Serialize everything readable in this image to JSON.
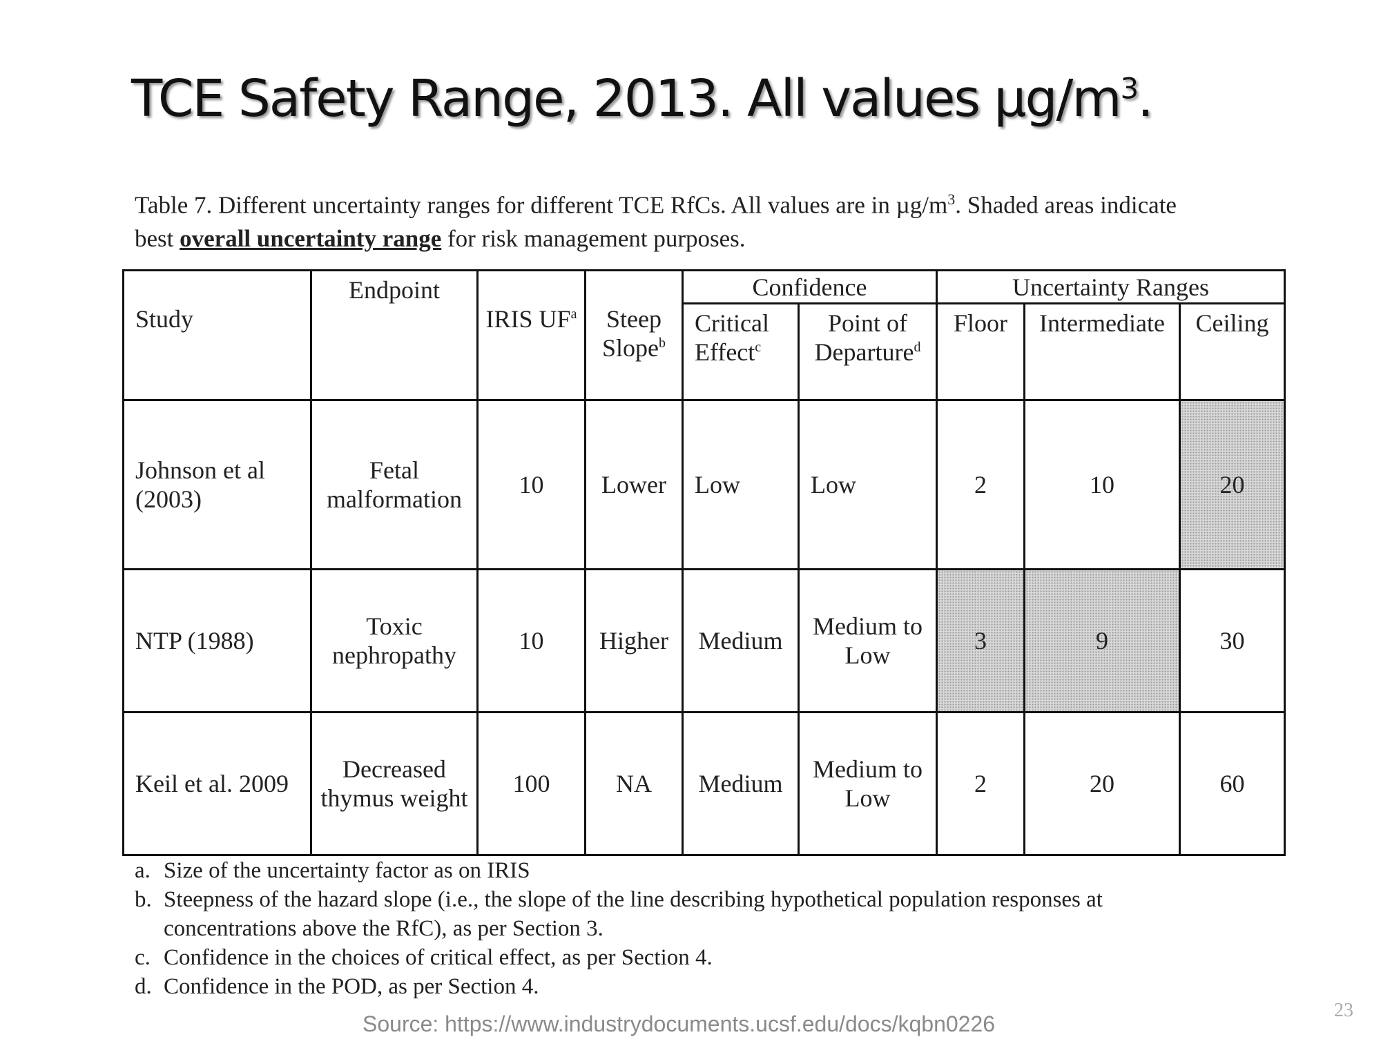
{
  "title": {
    "main": "TCE Safety Range, 2013. All values µg/m",
    "sup": "3",
    "end": "."
  },
  "caption": {
    "part1": "Table 7.  Different uncertainty ranges for different TCE RfCs.  All values are in µg/m",
    "sup": "3",
    "part2": ".  Shaded areas indicate best ",
    "emph": "overall uncertainty range",
    "part3": " for risk management purposes."
  },
  "table": {
    "headers": {
      "study": "Study",
      "endpoint": "Endpoint",
      "iris_uf": "IRIS UF",
      "iris_uf_note": "a",
      "steep_slope": "Steep Slope",
      "steep_slope_note": "b",
      "confidence": "Confidence",
      "critical_effect": "Critical Effect",
      "critical_effect_note": "c",
      "pod": "Point of Departure",
      "pod_note": "d",
      "uncertainty_ranges": "Uncertainty Ranges",
      "floor": "Floor",
      "intermediate": "Intermediate",
      "ceiling": "Ceiling"
    },
    "rows": [
      {
        "study": "Johnson et al (2003)",
        "endpoint": "Fetal malformation",
        "iris_uf": "10",
        "steep_slope": "Lower",
        "critical_effect": "Low",
        "pod": "Low",
        "floor": "2",
        "intermediate": "10",
        "ceiling": "20"
      },
      {
        "study": "NTP (1988)",
        "endpoint": "Toxic nephropathy",
        "iris_uf": "10",
        "steep_slope": "Higher",
        "critical_effect": "Medium",
        "pod": "Medium to Low",
        "floor": "3",
        "intermediate": "9",
        "ceiling": "30"
      },
      {
        "study": "Keil et al. 2009",
        "endpoint": "Decreased thymus weight",
        "iris_uf": "100",
        "steep_slope": "NA",
        "critical_effect": "Medium",
        "pod": "Medium to Low",
        "floor": "2",
        "intermediate": "20",
        "ceiling": "60"
      }
    ]
  },
  "footnotes": [
    {
      "key": "a.",
      "text": "Size of the uncertainty factor as on IRIS"
    },
    {
      "key": "b.",
      "text": "Steepness of the hazard slope (i.e., the slope of the line describing hypothetical population responses at concentrations above the RfC), as per Section 3."
    },
    {
      "key": "c.",
      "text": "Confidence in the choices of critical effect, as per Section 4."
    },
    {
      "key": "d.",
      "text": "Confidence in the POD, as per Section 4."
    }
  ],
  "source": "Source: https://www.industrydocuments.ucsf.edu/docs/kqbn0226",
  "page_number": "23",
  "colors": {
    "shaded": "#d9d9d9",
    "border": "#111111",
    "source_text": "#8a8a8a"
  }
}
